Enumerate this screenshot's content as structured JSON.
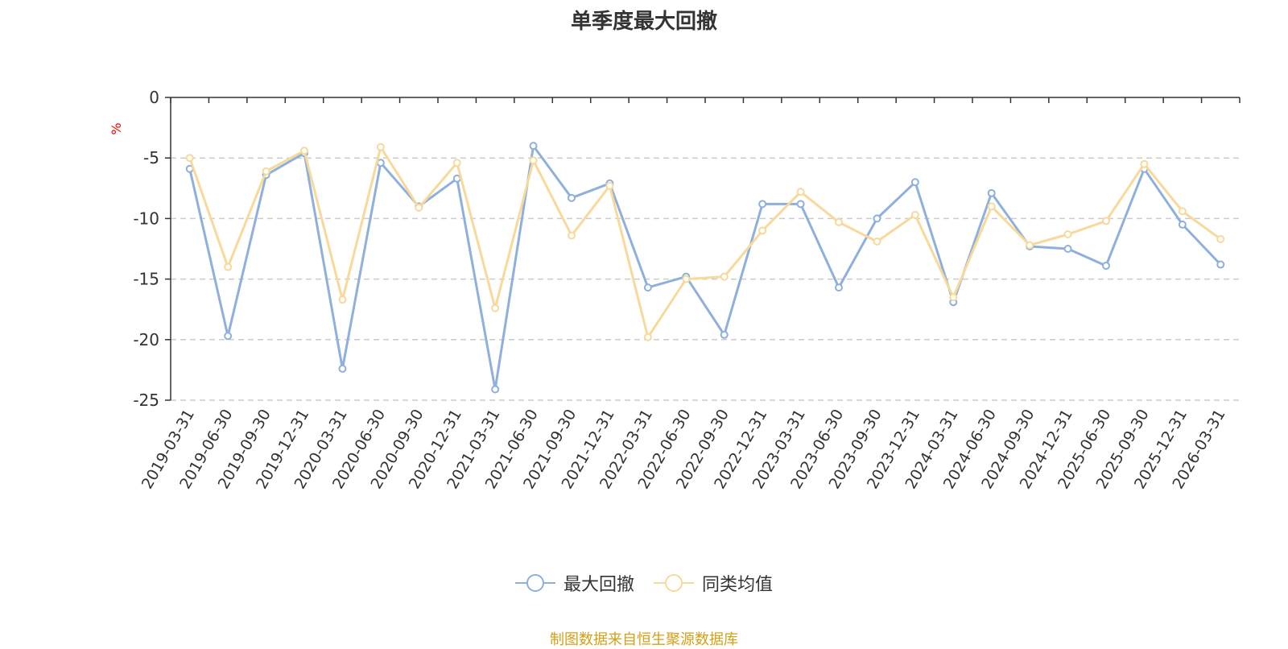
{
  "chart_data": {
    "type": "line",
    "title": "单季度最大回撤",
    "ylabel": "%",
    "ylim": [
      -25,
      0
    ],
    "yticks": [
      0,
      -5,
      -10,
      -15,
      -20,
      -25
    ],
    "grid": true,
    "legend_position": "bottom",
    "categories": [
      "2019-03-31",
      "2019-06-30",
      "2019-09-30",
      "2019-12-31",
      "2020-03-31",
      "2020-06-30",
      "2020-09-30",
      "2020-12-31",
      "2021-03-31",
      "2021-06-30",
      "2021-09-30",
      "2021-12-31",
      "2022-03-31",
      "2022-06-30",
      "2022-09-30",
      "2022-12-31",
      "2023-03-31",
      "2023-06-30",
      "2023-09-30",
      "2023-12-31",
      "2024-03-31",
      "2024-06-30",
      "2024-09-30",
      "2024-12-31",
      "2025-06-30",
      "2025-09-30",
      "2025-12-31",
      "2026-03-31"
    ],
    "series": [
      {
        "name": "最大回撤",
        "color": "#8fb0dc",
        "values": [
          -5.9,
          -19.7,
          -6.4,
          -4.6,
          -22.4,
          -5.4,
          -9.0,
          -6.7,
          -24.1,
          -4.0,
          -8.3,
          -7.1,
          -15.7,
          -14.8,
          -19.6,
          -8.8,
          -8.8,
          -15.7,
          -10.0,
          -7.0,
          -16.9,
          -7.9,
          -12.3,
          -12.5,
          -13.9,
          -5.9,
          -10.5,
          -13.8
        ]
      },
      {
        "name": "同类均值",
        "color": "#f7d99b",
        "values": [
          -5.0,
          -14.0,
          -6.1,
          -4.4,
          -16.7,
          -4.1,
          -9.1,
          -5.4,
          -17.4,
          -5.2,
          -11.4,
          -7.3,
          -19.8,
          -15.0,
          -14.8,
          -11.0,
          -7.8,
          -10.3,
          -11.9,
          -9.7,
          -16.5,
          -9.0,
          -12.2,
          -11.3,
          -10.2,
          -5.5,
          -9.4,
          -11.7
        ]
      }
    ]
  },
  "source_text": "制图数据来自恒生聚源数据库"
}
